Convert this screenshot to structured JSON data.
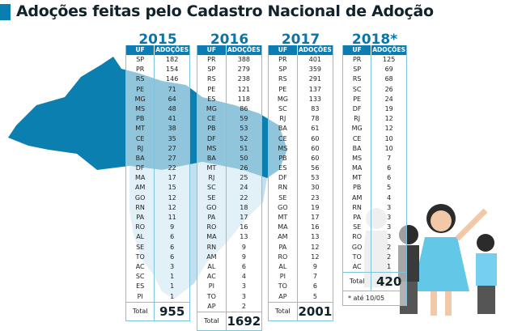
{
  "title": "Adoções feitas pelo Cadastro Nacional de Adoção",
  "colors": {
    "accent": "#0b7db3",
    "map": "#0a7fb0",
    "border": "#80c3de"
  },
  "headers": {
    "uf": "UF",
    "adocoes": "ADOÇÕES",
    "total": "Total"
  },
  "tables": [
    {
      "year": "2015",
      "total": "955",
      "rows": [
        [
          "SP",
          "182"
        ],
        [
          "PR",
          "154"
        ],
        [
          "RS",
          "146"
        ],
        [
          "PE",
          "71"
        ],
        [
          "MG",
          "64"
        ],
        [
          "MS",
          "48"
        ],
        [
          "PB",
          "41"
        ],
        [
          "MT",
          "38"
        ],
        [
          "CE",
          "35"
        ],
        [
          "RJ",
          "27"
        ],
        [
          "BA",
          "27"
        ],
        [
          "DF",
          "22"
        ],
        [
          "MA",
          "17"
        ],
        [
          "AM",
          "15"
        ],
        [
          "GO",
          "12"
        ],
        [
          "RN",
          "12"
        ],
        [
          "PA",
          "11"
        ],
        [
          "RO",
          "9"
        ],
        [
          "AL",
          "6"
        ],
        [
          "SE",
          "6"
        ],
        [
          "TO",
          "6"
        ],
        [
          "AC",
          "3"
        ],
        [
          "SC",
          "1"
        ],
        [
          "ES",
          "1"
        ],
        [
          "PI",
          "1"
        ]
      ]
    },
    {
      "year": "2016",
      "total": "1692",
      "rows": [
        [
          "PR",
          "388"
        ],
        [
          "SP",
          "279"
        ],
        [
          "RS",
          "238"
        ],
        [
          "PE",
          "121"
        ],
        [
          "ES",
          "118"
        ],
        [
          "MG",
          "86"
        ],
        [
          "CE",
          "59"
        ],
        [
          "PB",
          "53"
        ],
        [
          "DF",
          "52"
        ],
        [
          "MS",
          "51"
        ],
        [
          "BA",
          "50"
        ],
        [
          "MT",
          "26"
        ],
        [
          "RJ",
          "25"
        ],
        [
          "SC",
          "24"
        ],
        [
          "SE",
          "22"
        ],
        [
          "GO",
          "18"
        ],
        [
          "PA",
          "17"
        ],
        [
          "RO",
          "16"
        ],
        [
          "MA",
          "13"
        ],
        [
          "RN",
          "9"
        ],
        [
          "AM",
          "9"
        ],
        [
          "AL",
          "6"
        ],
        [
          "AC",
          "4"
        ],
        [
          "PI",
          "3"
        ],
        [
          "TO",
          "3"
        ],
        [
          "AP",
          "2"
        ]
      ]
    },
    {
      "year": "2017",
      "total": "2001",
      "rows": [
        [
          "PR",
          "401"
        ],
        [
          "SP",
          "359"
        ],
        [
          "RS",
          "291"
        ],
        [
          "PE",
          "137"
        ],
        [
          "MG",
          "133"
        ],
        [
          "SC",
          "83"
        ],
        [
          "RJ",
          "78"
        ],
        [
          "BA",
          "61"
        ],
        [
          "CE",
          "60"
        ],
        [
          "MS",
          "60"
        ],
        [
          "PB",
          "60"
        ],
        [
          "ES",
          "56"
        ],
        [
          "DF",
          "53"
        ],
        [
          "RN",
          "30"
        ],
        [
          "SE",
          "23"
        ],
        [
          "GO",
          "19"
        ],
        [
          "MT",
          "17"
        ],
        [
          "MA",
          "16"
        ],
        [
          "AM",
          "13"
        ],
        [
          "PA",
          "12"
        ],
        [
          "RO",
          "12"
        ],
        [
          "AL",
          "9"
        ],
        [
          "PI",
          "7"
        ],
        [
          "TO",
          "6"
        ],
        [
          "AP",
          "5"
        ]
      ]
    },
    {
      "year": "2018*",
      "total": "420",
      "note": "* até 10/05",
      "rows": [
        [
          "PR",
          "125"
        ],
        [
          "SP",
          "69"
        ],
        [
          "RS",
          "68"
        ],
        [
          "SC",
          "26"
        ],
        [
          "PE",
          "24"
        ],
        [
          "DF",
          "19"
        ],
        [
          "RJ",
          "12"
        ],
        [
          "MG",
          "12"
        ],
        [
          "CE",
          "10"
        ],
        [
          "BA",
          "10"
        ],
        [
          "MS",
          "7"
        ],
        [
          "MA",
          "6"
        ],
        [
          "MT",
          "6"
        ],
        [
          "PB",
          "5"
        ],
        [
          "AM",
          "4"
        ],
        [
          "RN",
          "3"
        ],
        [
          "PA",
          "3"
        ],
        [
          "SE",
          "3"
        ],
        [
          "RO",
          "3"
        ],
        [
          "GO",
          "2"
        ],
        [
          "TO",
          "2"
        ],
        [
          "AC",
          "1"
        ]
      ]
    }
  ]
}
